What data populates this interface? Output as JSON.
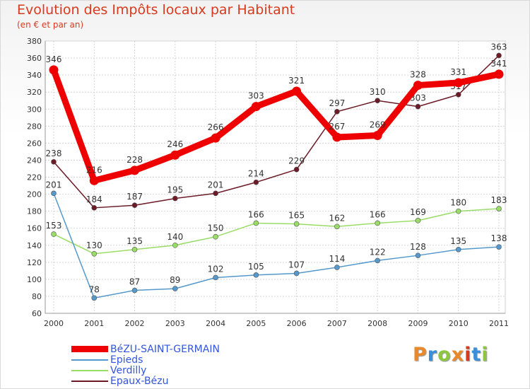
{
  "title": "Evolution des Impôts locaux par Habitant",
  "subtitle": "(en € et par an)",
  "logo": {
    "text": "Proxiti",
    "colors": [
      "#e8892e",
      "#3a8fd8",
      "#8dc63f",
      "#e8892e",
      "#d83a1f",
      "#3a8fd8",
      "#8dc63f"
    ]
  },
  "chart_data": {
    "type": "line",
    "title": "Evolution des Impôts locaux par Habitant",
    "subtitle": "(en € et par an)",
    "xlabel": "",
    "ylabel": "",
    "categories": [
      "2000",
      "2001",
      "2002",
      "2003",
      "2004",
      "2005",
      "2006",
      "2007",
      "2008",
      "2009",
      "2010",
      "2011"
    ],
    "ylim": [
      60,
      380
    ],
    "yticks": [
      60,
      80,
      100,
      120,
      140,
      160,
      180,
      200,
      220,
      240,
      260,
      280,
      300,
      320,
      340,
      360,
      380
    ],
    "grid": true,
    "legend_position": "bottom-left",
    "series": [
      {
        "name": "Epaux-Bézu",
        "color": "#6b1a26",
        "values": [
          238,
          184,
          187,
          195,
          201,
          214,
          229,
          297,
          310,
          303,
          317,
          363
        ],
        "labels": [
          "238",
          "184",
          "187",
          "195",
          "201",
          "214",
          "229",
          "297",
          "310",
          "303",
          "317",
          "363"
        ]
      },
      {
        "name": "Verdilly",
        "color": "#99dd66",
        "values": [
          153,
          130,
          135,
          140,
          150,
          166,
          165,
          162,
          166,
          169,
          180,
          183
        ],
        "labels": [
          "153",
          "130",
          "135",
          "140",
          "150",
          "166",
          "165",
          "162",
          "166",
          "169",
          "180",
          "183"
        ]
      },
      {
        "name": "Epieds",
        "color": "#5599cc",
        "values": [
          201,
          78,
          87,
          89,
          102,
          105,
          107,
          114,
          122,
          128,
          135,
          138
        ],
        "labels": [
          "201",
          "78",
          "87",
          "89",
          "102",
          "105",
          "107",
          "114",
          "122",
          "128",
          "135",
          "138"
        ]
      },
      {
        "name": "BéZU-SAINT-GERMAIN",
        "color": "#ee0000",
        "values": [
          346,
          216,
          228,
          246,
          266,
          303,
          321,
          267,
          269,
          328,
          331,
          341
        ],
        "labels": [
          "346",
          "216",
          "228",
          "246",
          "266",
          "303",
          "321",
          "267",
          "269",
          "328",
          "331",
          "341"
        ]
      }
    ],
    "legend": [
      "BéZU-SAINT-GERMAIN",
      "Epieds",
      "Verdilly",
      "Epaux-Bézu"
    ]
  }
}
